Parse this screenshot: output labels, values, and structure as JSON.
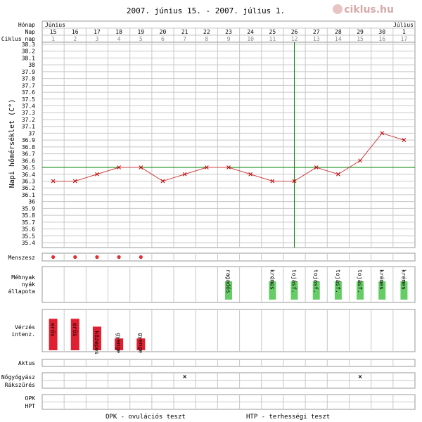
{
  "title": "2007. június 15. - 2007. július 1.",
  "logo": "ciklus.hu",
  "footer": {
    "opk": "OPK - ovulációs teszt",
    "htp": "HTP - terhességi teszt"
  },
  "row_labels": {
    "month": "Hónap",
    "day": "Nap",
    "cycle_day": "Ciklus nap",
    "menstruation": "Menszesz",
    "cervical_1": "Méhnyak",
    "cervical_2": "nyák",
    "cervical_3": "állapota",
    "bleeding_1": "Vérzés",
    "bleeding_2": "intenz.",
    "intercourse": "Aktus",
    "gyno": "Nőgyógyász",
    "cancer": "Rákszűrés",
    "opk": "OPK",
    "hpt": "HPT"
  },
  "colors": {
    "grid": "#c8c8c8",
    "temp_line": "#d04040",
    "marker": "#c00000",
    "coverline": "#008000",
    "ovulation_line": "#008000",
    "menses_dot": "#e03030",
    "bleeding_bar": "#e02030",
    "mucus_bar": "#66cc66"
  },
  "chart_data": {
    "type": "line",
    "ylabel": "Napi hőmérséklet (C°)",
    "ylim": [
      35.4,
      38.3
    ],
    "ystep": 0.1,
    "months": [
      {
        "label": "Június",
        "start_index": 0
      },
      {
        "label": "Július",
        "start_index": 16
      }
    ],
    "days": [
      "15",
      "16",
      "17",
      "18",
      "19",
      "20",
      "21",
      "22",
      "23",
      "24",
      "25",
      "26",
      "27",
      "28",
      "29",
      "30",
      "1"
    ],
    "cycle_days": [
      "1",
      "2",
      "3",
      "4",
      "5",
      "6",
      "7",
      "8",
      "9",
      "10",
      "11",
      "12",
      "13",
      "14",
      "15",
      "16",
      "17"
    ],
    "series": [
      {
        "values": [
          36.3,
          36.3,
          36.4,
          36.5,
          36.5,
          36.3,
          36.4,
          36.5,
          36.5,
          36.4,
          36.3,
          36.3,
          36.5,
          36.4,
          36.6,
          37.0,
          36.9
        ]
      }
    ],
    "coverline": 36.5,
    "ovulation_day_index": 11,
    "menstruation": [
      0,
      1,
      2,
      3,
      4
    ],
    "cervical_mucus": [
      {
        "index": 8,
        "label": "ragadós"
      },
      {
        "index": 10,
        "label": "krémes"
      },
      {
        "index": 11,
        "label": "tojásf."
      },
      {
        "index": 12,
        "label": "tojásf."
      },
      {
        "index": 13,
        "label": "tojásf."
      },
      {
        "index": 14,
        "label": "tojásf."
      },
      {
        "index": 15,
        "label": "krémes"
      },
      {
        "index": 16,
        "label": "krémes"
      }
    ],
    "bleeding": [
      {
        "index": 0,
        "label": "erős",
        "level": 0.8
      },
      {
        "index": 1,
        "label": "erős",
        "level": 0.8
      },
      {
        "index": 2,
        "label": "közepes",
        "level": 0.6
      },
      {
        "index": 3,
        "label": "gyenge",
        "level": 0.3
      },
      {
        "index": 4,
        "label": "gyenge",
        "level": 0.3
      }
    ],
    "gyno_visits": [
      6,
      14
    ]
  }
}
